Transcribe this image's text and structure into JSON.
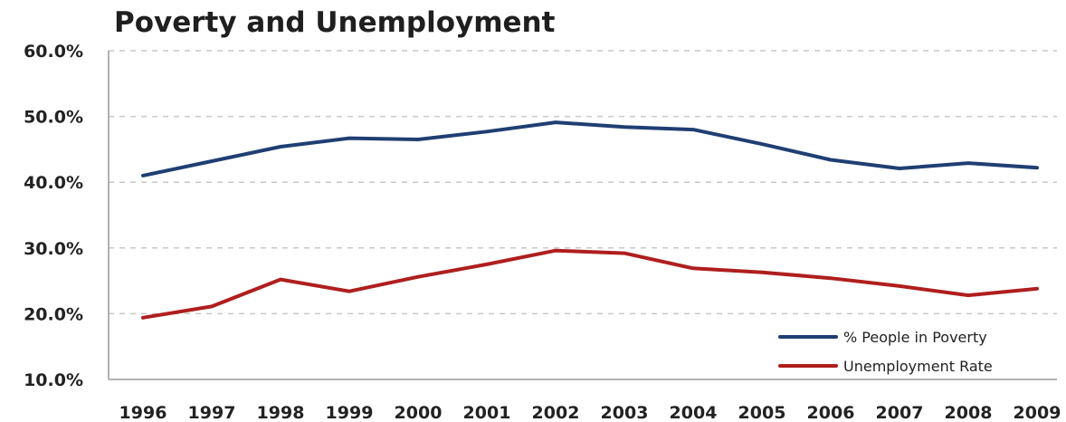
{
  "chart_data": {
    "type": "line",
    "title": "Poverty and Unemployment",
    "xlabel": "",
    "ylabel": "",
    "x": [
      "1996",
      "1997",
      "1998",
      "1999",
      "2000",
      "2001",
      "2002",
      "2003",
      "2004",
      "2005",
      "2006",
      "2007",
      "2008",
      "2009"
    ],
    "ylim": [
      10,
      60
    ],
    "y_ticks": [
      10,
      20,
      30,
      40,
      50,
      60
    ],
    "y_tick_labels": [
      "10.0%",
      "20.0%",
      "30.0%",
      "40.0%",
      "50.0%",
      "60.0%"
    ],
    "grid": true,
    "legend_position": "bottom-right",
    "series": [
      {
        "name": "% People in Poverty",
        "color": "#1f3f73",
        "values": [
          41.0,
          43.2,
          45.4,
          46.7,
          46.5,
          47.7,
          49.1,
          48.4,
          48.0,
          45.8,
          43.4,
          42.1,
          42.9,
          42.2
        ]
      },
      {
        "name": "Unemployment Rate",
        "color": "#b01e1e",
        "values": [
          19.4,
          21.1,
          25.2,
          23.4,
          25.6,
          27.5,
          29.6,
          29.2,
          26.9,
          26.3,
          25.4,
          24.2,
          22.8,
          23.8
        ]
      }
    ]
  }
}
